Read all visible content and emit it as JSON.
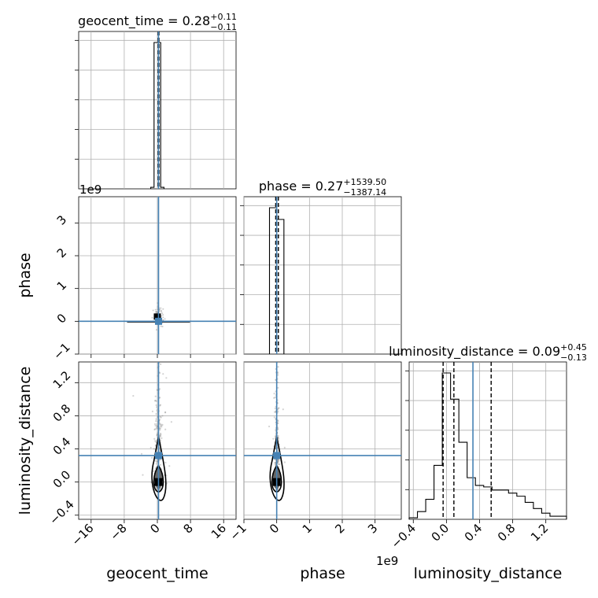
{
  "chart_data": {
    "type": "corner",
    "parameters": [
      "geocent_time",
      "phase",
      "luminosity_distance"
    ],
    "truth_color": "#4682b4",
    "panel_titles": [
      {
        "param": "geocent_time",
        "prefix": "geocent_time = 0.28",
        "sup": "+0.11",
        "sub": "−0.11"
      },
      {
        "param": "phase",
        "prefix": "phase = 0.27",
        "sup": "+1539.50",
        "sub": "−1387.14"
      },
      {
        "param": "luminosity_distance",
        "prefix": "luminosity_distance = 0.09",
        "sup": "+0.45",
        "sub": "−0.13"
      }
    ],
    "axis_labels": {
      "x": [
        "geocent_time",
        "phase",
        "luminosity_distance"
      ],
      "y": [
        "phase",
        "luminosity_distance"
      ]
    },
    "offset_labels": {
      "phase_row": "1e9",
      "phase_col": "1e9"
    },
    "axes": {
      "geocent_time": {
        "range": [
          -19,
          19
        ],
        "ticks": [
          "−16",
          "−8",
          "0",
          "8",
          "16"
        ],
        "tick_values": [
          -16,
          -8,
          0,
          8,
          16
        ],
        "truth": 0.28,
        "median": 0.28,
        "quantiles": [
          0.17,
          0.39
        ]
      },
      "phase": {
        "range": [
          -1,
          3.8
        ],
        "ticks": [
          "−1",
          "0",
          "1",
          "2",
          "3"
        ],
        "tick_values": [
          -1,
          0,
          1,
          2,
          3
        ],
        "truth": 0.0,
        "median": 0.0,
        "quantiles": [
          -0.03,
          0.05
        ]
      },
      "luminosity_distance": {
        "range": [
          -0.45,
          1.45
        ],
        "ticks": [
          "−0.4",
          "0.0",
          "0.4",
          "0.8",
          "1.2"
        ],
        "tick_values": [
          -0.4,
          0.0,
          0.4,
          0.8,
          1.2
        ],
        "truth": 0.32,
        "median": 0.09,
        "quantiles": [
          -0.04,
          0.54
        ]
      }
    },
    "hist_geocent_time": {
      "bin_edges": [
        -1.6,
        -0.8,
        0.0,
        0.8,
        1.6
      ],
      "counts": [
        0.01,
        0.95,
        0.95,
        0.01
      ]
    },
    "hist_phase": {
      "bin_edges": [
        -0.22,
        0.0,
        0.22
      ],
      "counts": [
        1.0,
        0.92
      ]
    },
    "hist_luminosity_distance": {
      "bin_edges": [
        -0.45,
        -0.35,
        -0.25,
        -0.15,
        -0.05,
        0.05,
        0.15,
        0.25,
        0.35,
        0.45,
        0.55,
        0.65,
        0.75,
        0.85,
        0.95,
        1.05,
        1.15,
        1.25,
        1.35,
        1.45
      ],
      "counts": [
        0.01,
        0.05,
        0.13,
        0.35,
        0.95,
        0.78,
        0.5,
        0.27,
        0.22,
        0.21,
        0.19,
        0.19,
        0.17,
        0.15,
        0.11,
        0.07,
        0.04,
        0.02,
        0.02
      ]
    }
  }
}
